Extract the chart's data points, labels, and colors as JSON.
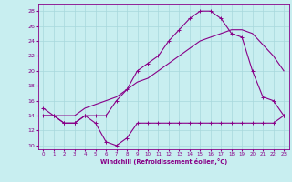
{
  "xlabel": "Windchill (Refroidissement éolien,°C)",
  "bg_color": "#c8eef0",
  "grid_color": "#a8d8dc",
  "line_color": "#880088",
  "xlim": [
    -0.5,
    23.5
  ],
  "ylim": [
    9.5,
    29
  ],
  "xticks": [
    0,
    1,
    2,
    3,
    4,
    5,
    6,
    7,
    8,
    9,
    10,
    11,
    12,
    13,
    14,
    15,
    16,
    17,
    18,
    19,
    20,
    21,
    22,
    23
  ],
  "yticks": [
    10,
    12,
    14,
    16,
    18,
    20,
    22,
    24,
    26,
    28
  ],
  "line1_x": [
    0,
    1,
    2,
    3,
    4,
    5,
    6,
    7,
    8,
    9,
    10,
    11,
    12,
    13,
    14,
    15,
    16,
    17,
    18,
    19,
    20,
    21,
    22,
    23
  ],
  "line1_y": [
    15,
    14,
    13,
    13,
    14,
    13,
    10.5,
    10,
    11,
    13,
    13,
    13,
    13,
    13,
    13,
    13,
    13,
    13,
    13,
    13,
    13,
    13,
    13,
    14
  ],
  "line2_x": [
    0,
    1,
    2,
    3,
    4,
    5,
    6,
    7,
    8,
    9,
    10,
    11,
    12,
    13,
    14,
    15,
    16,
    17,
    18,
    19,
    20,
    21,
    22,
    23
  ],
  "line2_y": [
    14,
    14,
    13,
    13,
    14,
    14,
    14,
    16,
    17.5,
    20,
    21,
    22,
    24,
    25.5,
    27,
    28,
    28,
    27,
    25,
    24.5,
    20,
    16.5,
    16,
    14
  ],
  "line3_x": [
    0,
    1,
    2,
    3,
    4,
    5,
    6,
    7,
    8,
    9,
    10,
    11,
    12,
    13,
    14,
    15,
    16,
    17,
    18,
    19,
    20,
    21,
    22,
    23
  ],
  "line3_y": [
    14,
    14,
    14,
    14,
    15,
    15.5,
    16,
    16.5,
    17.5,
    18.5,
    19,
    20,
    21,
    22,
    23,
    24,
    24.5,
    25,
    25.5,
    25.5,
    25,
    23.5,
    22,
    20
  ],
  "marker2": "+",
  "marker3": "D"
}
